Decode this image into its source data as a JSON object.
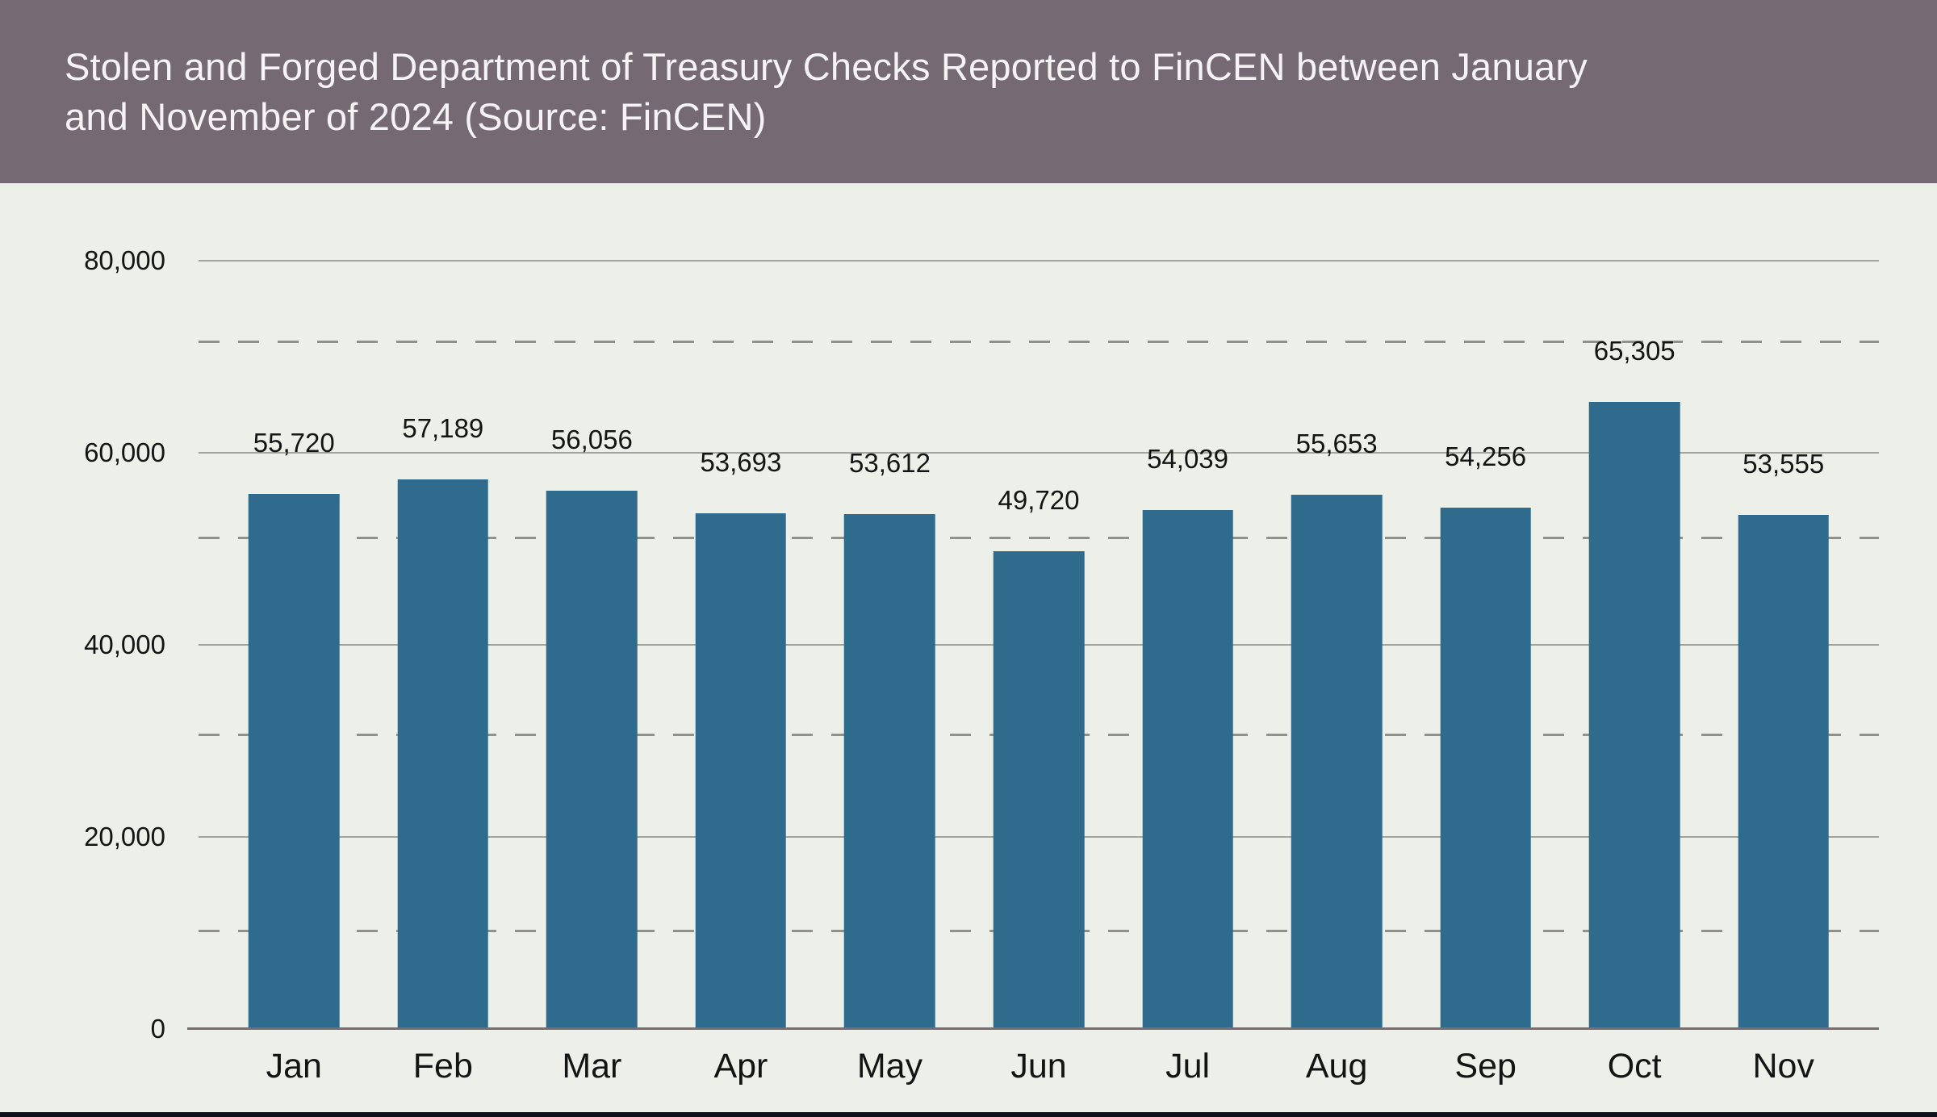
{
  "header": {
    "title_line1": "Stolen and Forged Department of Treasury Checks Reported to FinCEN between January",
    "title_line2": "and November of 2024 (Source: FinCEN)"
  },
  "chart_data": {
    "type": "bar",
    "title": "Stolen and Forged Department of Treasury Checks Reported to FinCEN between January and November of 2024 (Source: FinCEN)",
    "source": "FinCEN",
    "categories": [
      "Jan",
      "Feb",
      "Mar",
      "Apr",
      "May",
      "Jun",
      "Jul",
      "Aug",
      "Sep",
      "Oct",
      "Nov"
    ],
    "values": [
      55720,
      57189,
      56056,
      53693,
      53612,
      49720,
      54039,
      55653,
      54256,
      65305,
      53555
    ],
    "value_labels": [
      "55,720",
      "57,189",
      "56,056",
      "53,693",
      "53,612",
      "49,720",
      "54,039",
      "55,653",
      "54,256",
      "65,305",
      "53,555"
    ],
    "xlabel": "",
    "ylabel": "",
    "ylim": [
      0,
      80000
    ],
    "y_ticks_solid": [
      80000,
      60000,
      40000,
      20000,
      0
    ],
    "y_tick_labels": [
      "80,000",
      "60,000",
      "40,000",
      "20,000",
      "0"
    ],
    "y_ticks_dashed": [
      70000,
      50000,
      30000,
      10000
    ],
    "grid": true,
    "legend": false
  },
  "colors": {
    "header_bg": "#756973",
    "title_text": "#f5f3f5",
    "chart_bg": "#edf0e9",
    "bar": "#2e6b8d",
    "grid_solid": "#a3a49e",
    "grid_dashed": "#90918b",
    "zero_axis": "#7b6c74",
    "label_text": "#141414",
    "footer_strip": "#0d1218"
  }
}
